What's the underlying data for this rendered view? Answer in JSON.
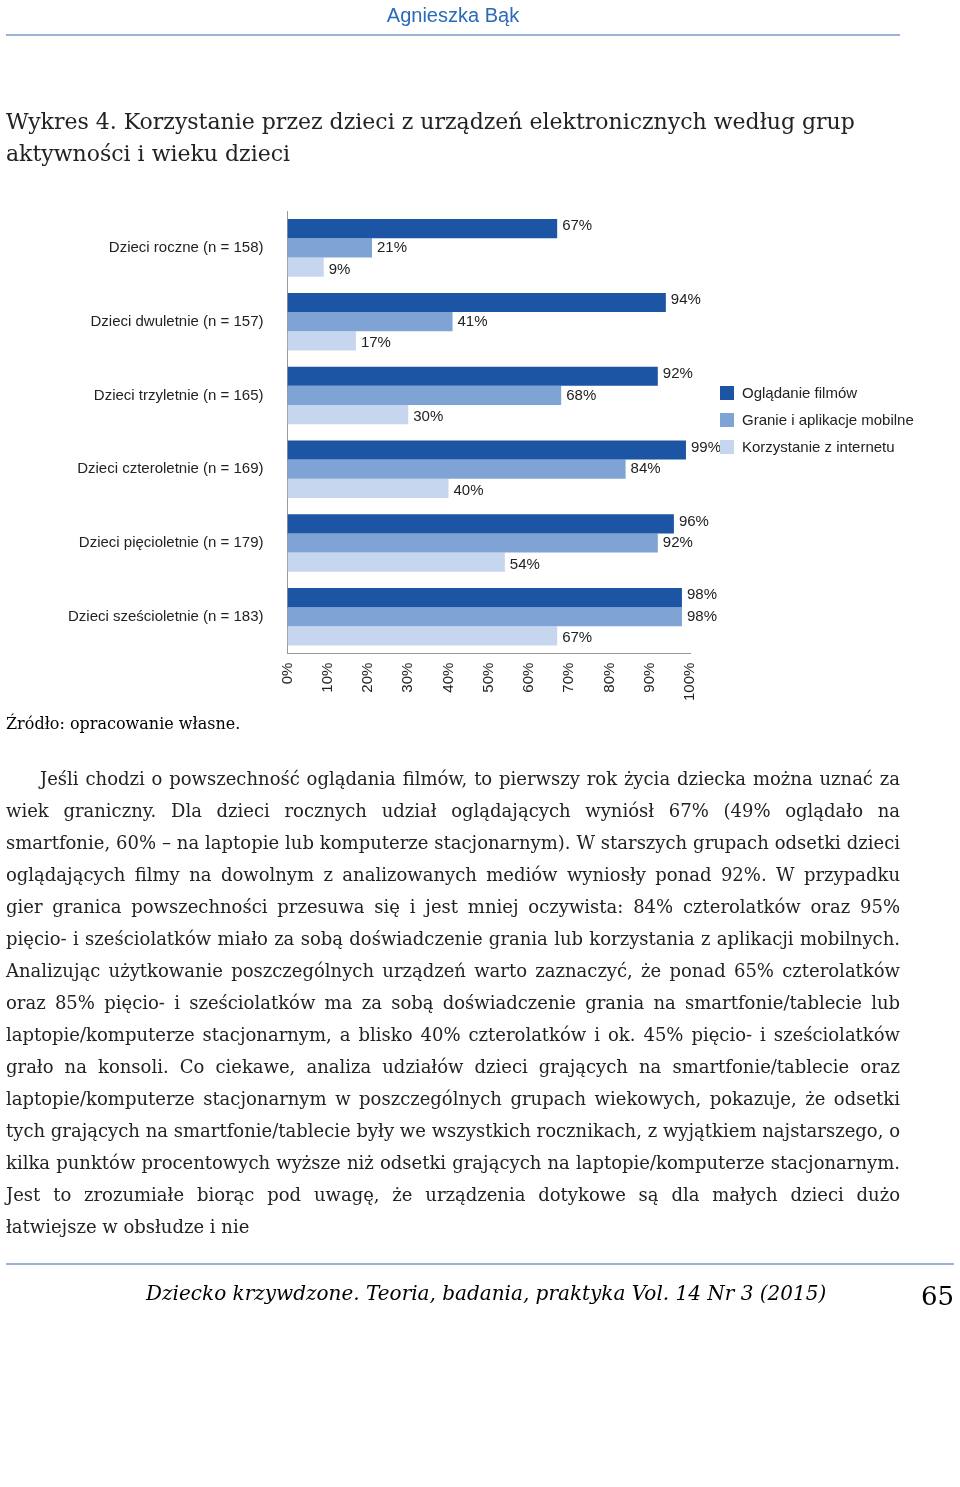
{
  "chart_data": {
    "type": "bar",
    "orientation": "horizontal",
    "title": "Wykres 4. Korzystanie przez dzieci z urządzeń elektronicznych według grup aktywności i wieku dzieci",
    "categories": [
      "Dzieci roczne (n = 158)",
      "Dzieci dwuletnie (n = 157)",
      "Dzieci trzyletnie (n = 165)",
      "Dzieci czteroletnie (n = 169)",
      "Dzieci pięcioletnie (n = 179)",
      "Dzieci sześcioletnie (n = 183)"
    ],
    "series": [
      {
        "name": "Oglądanie filmów",
        "color": "#1d55a5",
        "values": [
          67,
          94,
          92,
          99,
          96,
          98
        ],
        "value_labels": [
          "67%",
          "94%",
          "92%",
          "99%",
          "96%",
          "98%"
        ]
      },
      {
        "name": "Granie i aplikacje mobilne",
        "color": "#7ea3d4",
        "values": [
          21,
          41,
          68,
          84,
          92,
          98
        ],
        "value_labels": [
          "21%",
          "41%",
          "68%",
          "84%",
          "92%",
          "98%"
        ]
      },
      {
        "name": "Korzystanie z internetu",
        "color": "#c6d6ee",
        "values": [
          9,
          17,
          30,
          40,
          54,
          67
        ],
        "value_labels": [
          "9%",
          "17%",
          "30%",
          "40%",
          "54%",
          "67%"
        ]
      }
    ],
    "xlim": [
      0,
      100
    ],
    "xticks": [
      {
        "value": 0,
        "label": "0%"
      },
      {
        "value": 10,
        "label": "10%"
      },
      {
        "value": 20,
        "label": "20%"
      },
      {
        "value": 30,
        "label": "30%"
      },
      {
        "value": 40,
        "label": "40%"
      },
      {
        "value": 50,
        "label": "50%"
      },
      {
        "value": 60,
        "label": "60%"
      },
      {
        "value": 70,
        "label": "70%"
      },
      {
        "value": 80,
        "label": "80%"
      },
      {
        "value": 90,
        "label": "90%"
      },
      {
        "value": 100,
        "label": "100%"
      }
    ],
    "grid": false,
    "legend": "right",
    "annotations": [
      "Agnieszka Bąk",
      "Źródło: opracowanie własne.",
      "Jeśli chodzi o powszechność oglądania filmów, to pierwszy rok życia dziecka można uznać za wiek graniczny. Dla dzieci rocznych udział oglądających wyniósł 67% (49% oglądało na smartfonie, 60% – na laptopie lub komputerze stacjonarnym). W starszych grupach odsetki dzieci oglądających filmy na dowolnym z analizowanych mediów wyniosły ponad 92%. W przypadku gier granica powszechności przesuwa się i jest mniej oczywista: 84% czterolatków oraz 95% pięcio- i sześciolatków miało za sobą doświadczenie grania lub korzystania z aplikacji mobilnych. Analizując użytkowanie poszczególnych urządzeń warto zaznaczyć, że ponad 65% czterolatków oraz 85% pięcio- i sześciolatków ma za sobą doświadczenie grania na smartfonie/tablecie lub laptopie/komputerze stacjonarnym, a blisko 40% czterolatków i ok. 45% pięcio- i sześciolatków grało na konsoli. Co ciekawe, analiza udziałów dzieci grających na smartfonie/tablecie oraz laptopie/komputerze stacjonarnym w poszczególnych grupach wiekowych, pokazuje, że odsetki tych grających na smartfonie/tablecie były we wszystkich rocznikach, z wyjątkiem najstarszego, o kilka punktów procentowych wyższe niż odsetki grających na laptopie/komputerze stacjonarnym. Jest to zrozumiałe biorąc pod uwagę, że urządzenia dotykowe są dla małych dzieci dużo łatwiejsze w obsłudze i nie",
      "Dziecko krzywdzone. Teoria, badania, praktyka Vol. 14 Nr 3 (2015)",
      "65"
    ]
  }
}
